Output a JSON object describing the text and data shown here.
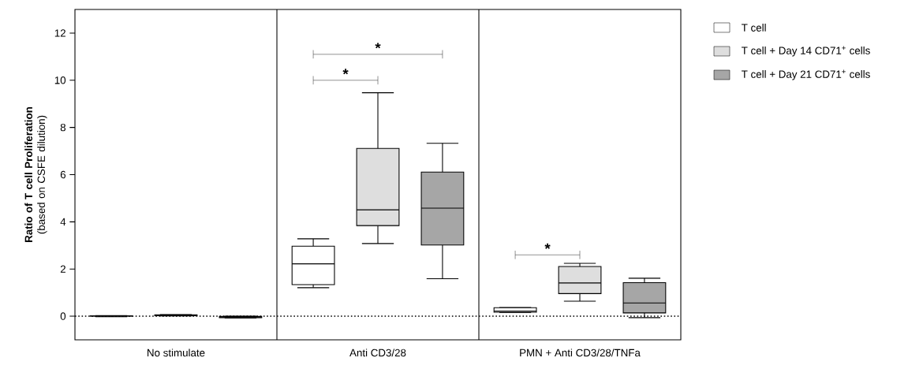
{
  "chart_data": {
    "type": "box",
    "ylabel": "**Ratio of T cell Proliferation** (based on CSFE dilution)",
    "categories": [
      "No stimulate",
      "Anti CD3/28",
      "PMN + Anti CD3/28/TNFa"
    ],
    "series": [
      {
        "name": "T cell",
        "color": "#ffffff",
        "boxes": [
          {
            "low": -0.02,
            "q1": 0,
            "median": 0.01,
            "q3": 0.02,
            "high": 0.03
          },
          {
            "low": 1.21,
            "q1": 1.34,
            "median": 2.22,
            "q3": 2.97,
            "high": 3.28
          },
          {
            "low": 0.15,
            "q1": 0.17,
            "median": 0.22,
            "q3": 0.36,
            "high": 0.37
          }
        ]
      },
      {
        "name": "T cell + Day 14 CD71$^{+}$ cells",
        "color": "#dedede",
        "boxes": [
          {
            "low": 0.01,
            "q1": 0.02,
            "median": 0.04,
            "q3": 0.06,
            "high": 0.07
          },
          {
            "low": 3.08,
            "q1": 3.84,
            "median": 4.51,
            "q3": 7.11,
            "high": 9.47
          },
          {
            "low": 0.64,
            "q1": 0.96,
            "median": 1.41,
            "q3": 2.11,
            "high": 2.24
          }
        ]
      },
      {
        "name": "T cell + Day 21 CD71$^{+}$ cells",
        "color": "#a6a6a6",
        "boxes": [
          {
            "low": -0.07,
            "q1": -0.06,
            "median": -0.03,
            "q3": -0.01,
            "high": 0
          },
          {
            "low": 1.59,
            "q1": 3.02,
            "median": 4.58,
            "q3": 6.11,
            "high": 7.33
          },
          {
            "low": -0.06,
            "q1": 0.14,
            "median": 0.56,
            "q3": 1.42,
            "high": 1.61
          }
        ]
      }
    ],
    "ylim": [
      -1,
      13
    ],
    "yticks": [
      0,
      2,
      4,
      6,
      8,
      10,
      12
    ],
    "grid": false,
    "legend": "right",
    "ref_lines": [
      {
        "axis": "y",
        "value": 0,
        "line_style": "dotted"
      }
    ],
    "annotations": [
      "*",
      "*",
      "*"
    ]
  }
}
